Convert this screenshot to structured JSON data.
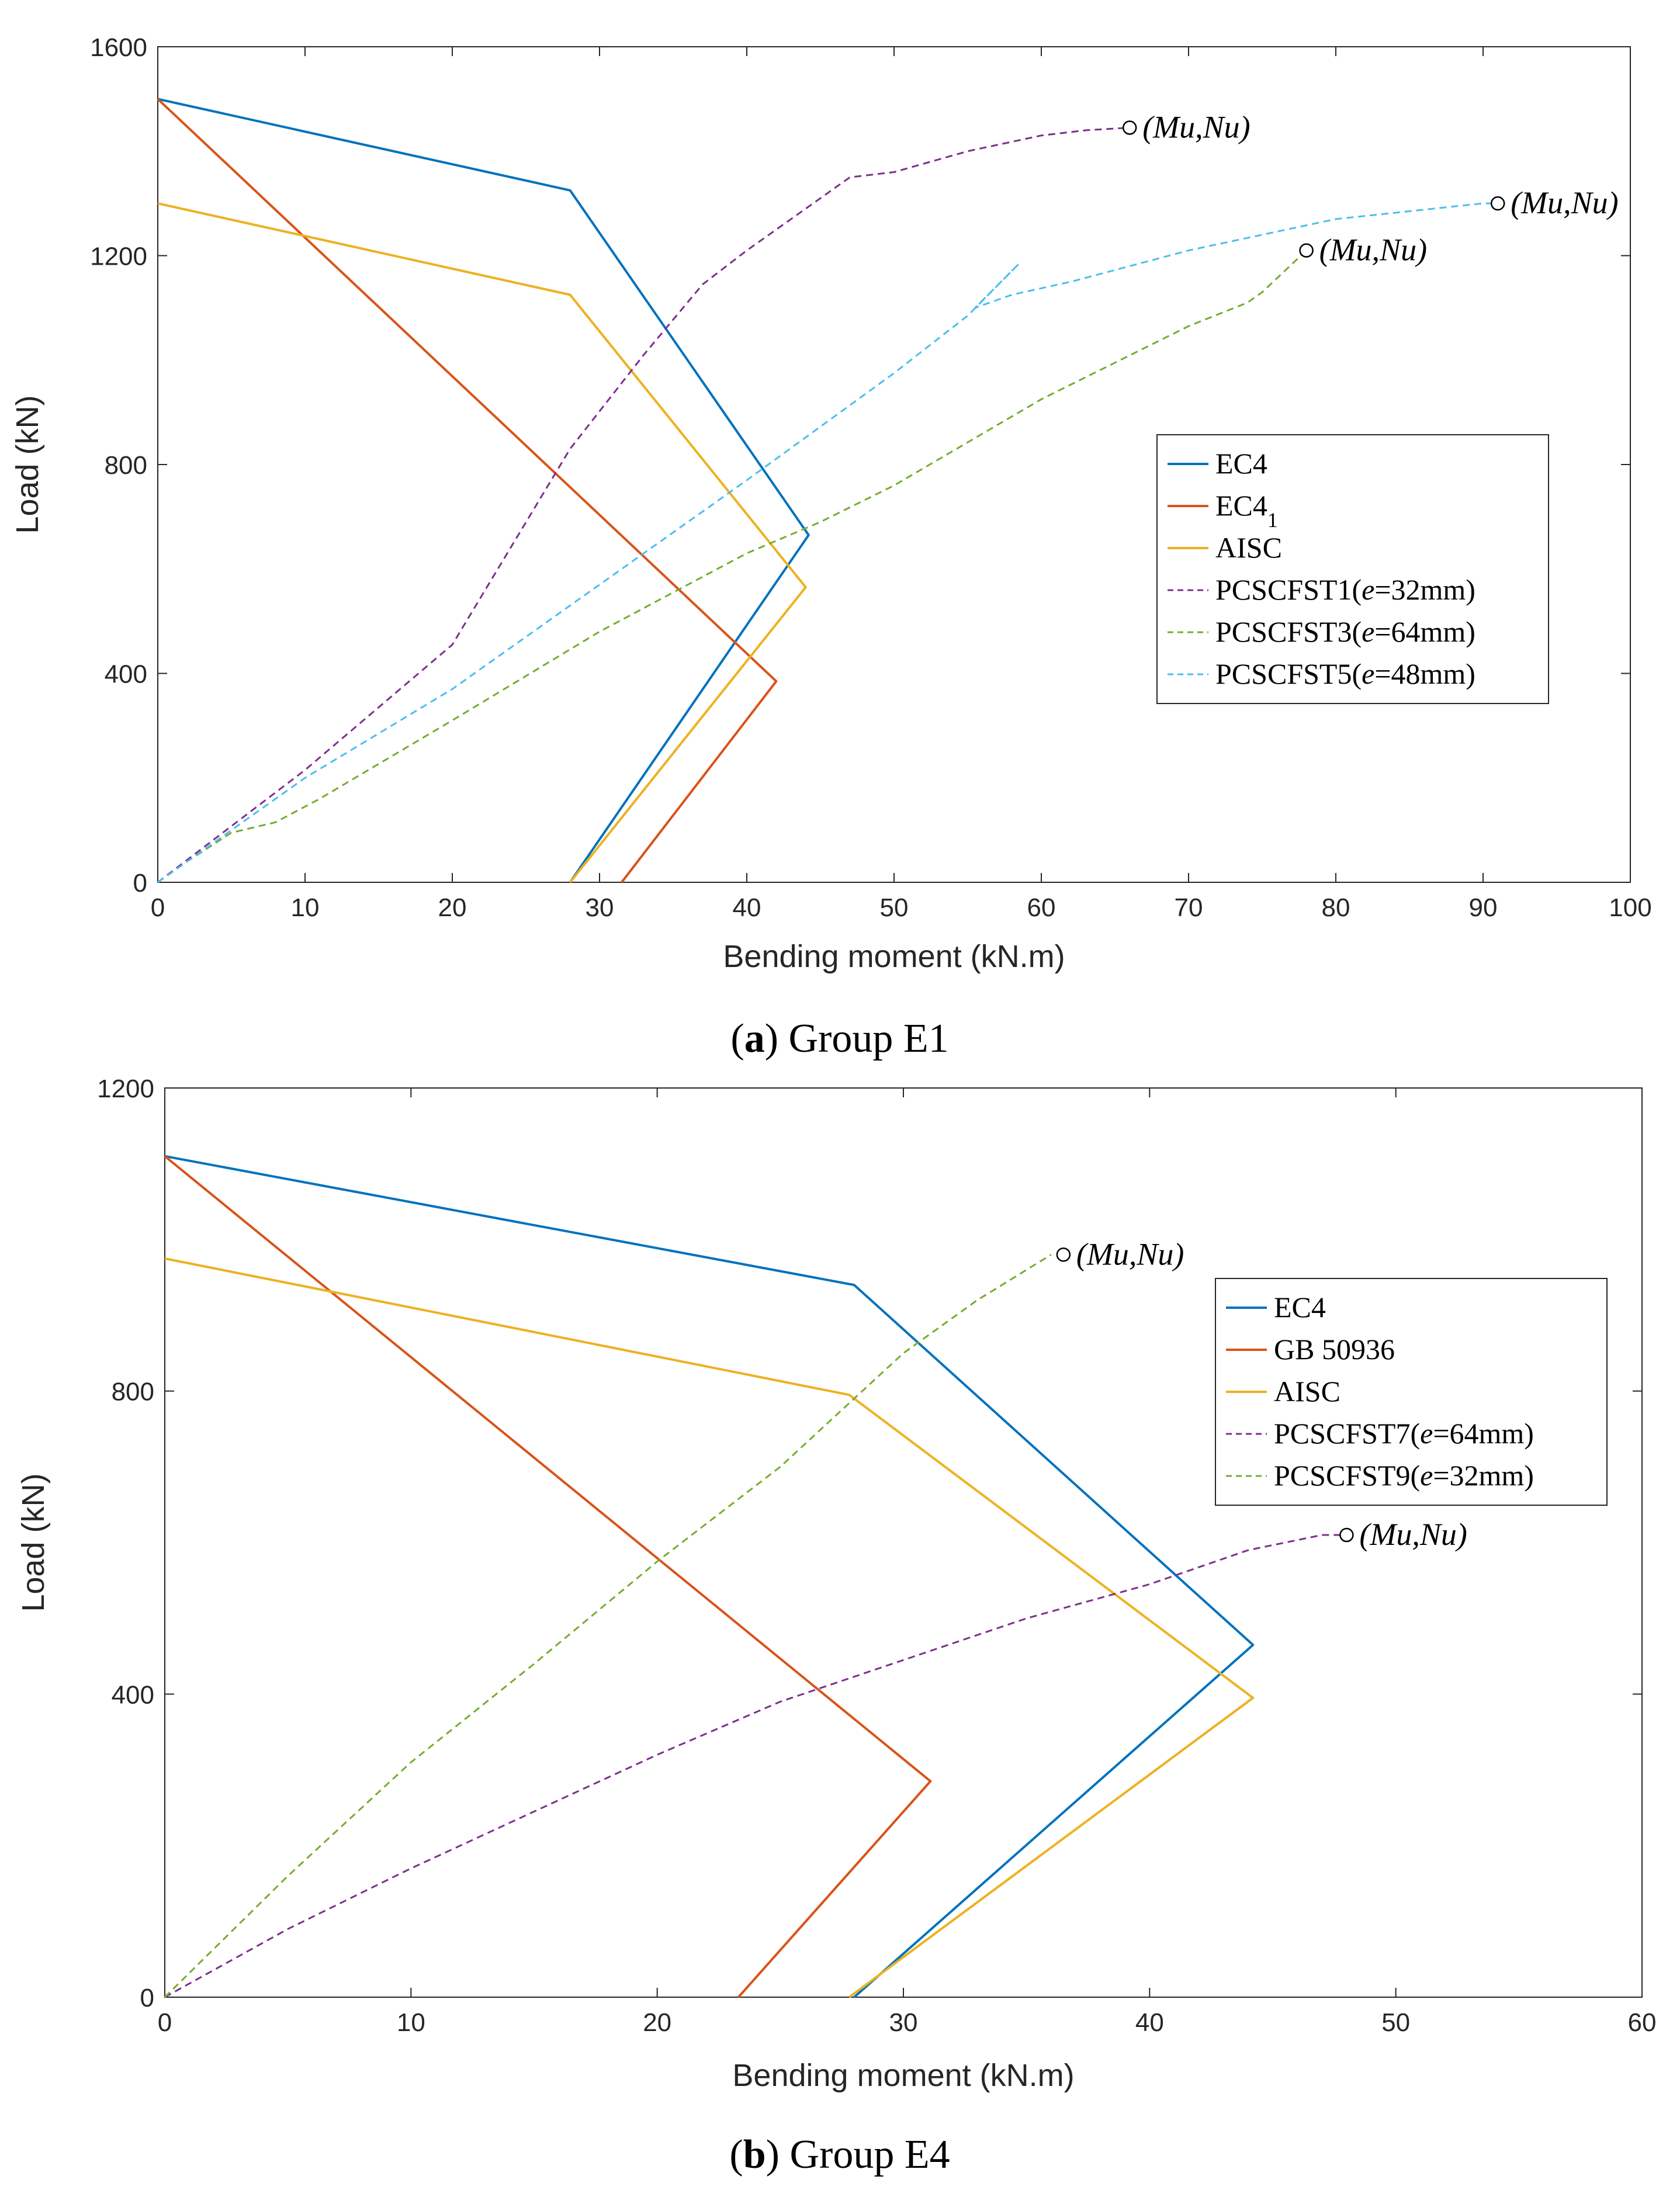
{
  "colors": {
    "EC4": "#0072BD",
    "EC4_1": "#D95319",
    "GB 50936": "#D95319",
    "AISC": "#EDB120",
    "purple": "#7E2F8E",
    "green": "#77AC30",
    "cyan": "#4DBEEE"
  },
  "chart_data": [
    {
      "type": "line",
      "caption": {
        "prefix": "(",
        "letter": "a",
        "suffix": ") Group E1"
      },
      "xlabel": "Bending moment (kN.m)",
      "ylabel": "Load (kN)",
      "xlim": [
        0,
        100
      ],
      "ylim": [
        0,
        1600
      ],
      "xticks": [
        0,
        10,
        20,
        30,
        40,
        50,
        60,
        70,
        80,
        90,
        100
      ],
      "yticks": [
        0,
        400,
        800,
        1200,
        1600
      ],
      "legend": {
        "position": "middle-right",
        "entries": [
          {
            "label": "EC4",
            "color": "#0072BD",
            "dash": false
          },
          {
            "label": "EC4",
            "sub": "1",
            "color": "#D95319",
            "dash": false
          },
          {
            "label": "AISC",
            "color": "#EDB120",
            "dash": false
          },
          {
            "label": "PCSCFST1(",
            "ital": "e",
            "rest": "=32mm)",
            "color": "#7E2F8E",
            "dash": true
          },
          {
            "label": "PCSCFST3(",
            "ital": "e",
            "rest": "=64mm)",
            "color": "#77AC30",
            "dash": true
          },
          {
            "label": "PCSCFST5(",
            "ital": "e",
            "rest": "=48mm)",
            "color": "#4DBEEE",
            "dash": true
          }
        ]
      },
      "series": [
        {
          "name": "EC4",
          "color": "#0072BD",
          "dash": false,
          "x": [
            0,
            28,
            44.2,
            28
          ],
          "y": [
            1500,
            1325,
            665,
            0
          ]
        },
        {
          "name": "EC4_1",
          "color": "#D95319",
          "dash": false,
          "x": [
            0,
            42,
            31.5
          ],
          "y": [
            1500,
            385,
            0
          ]
        },
        {
          "name": "AISC",
          "color": "#EDB120",
          "dash": false,
          "x": [
            0,
            28,
            44,
            28
          ],
          "y": [
            1300,
            1125,
            565,
            0
          ]
        },
        {
          "name": "PCSCFST1",
          "color": "#7E2F8E",
          "dash": true,
          "x": [
            0,
            10,
            20,
            28,
            33,
            37,
            40,
            44,
            47,
            50,
            55,
            60,
            63,
            66
          ],
          "y": [
            0,
            215,
            455,
            830,
            1010,
            1145,
            1210,
            1290,
            1350,
            1360,
            1400,
            1430,
            1440,
            1445
          ]
        },
        {
          "name": "PCSCFST3",
          "color": "#77AC30",
          "dash": true,
          "x": [
            0,
            2,
            5,
            8,
            11,
            20,
            30,
            40,
            45,
            50,
            60,
            70,
            74,
            75,
            78
          ],
          "y": [
            0,
            40,
            95,
            115,
            160,
            310,
            480,
            630,
            690,
            760,
            925,
            1065,
            1110,
            1130,
            1210
          ]
        },
        {
          "name": "PCSCFST5",
          "color": "#4DBEEE",
          "dash": true,
          "x": [
            0,
            10,
            20,
            30,
            40,
            50,
            55,
            58.5,
            55.5,
            58,
            62,
            70,
            80,
            90,
            91
          ],
          "y": [
            0,
            200,
            370,
            570,
            770,
            975,
            1085,
            1185,
            1100,
            1125,
            1150,
            1210,
            1270,
            1300,
            1300
          ]
        }
      ],
      "annotations": [
        {
          "x": 66,
          "y": 1445,
          "text": "(Mu,Nu)"
        },
        {
          "x": 91,
          "y": 1300,
          "text": "(Mu,Nu)"
        },
        {
          "x": 78,
          "y": 1210,
          "text": "(Mu,Nu)"
        }
      ]
    },
    {
      "type": "line",
      "caption": {
        "prefix": "(",
        "letter": "b",
        "suffix": ") Group E4"
      },
      "xlabel": "Bending moment (kN.m)",
      "ylabel": "Load (kN)",
      "xlim": [
        0,
        60
      ],
      "ylim": [
        0,
        1200
      ],
      "xticks": [
        0,
        10,
        20,
        30,
        40,
        50,
        60
      ],
      "yticks": [
        0,
        400,
        800,
        1200
      ],
      "legend": {
        "position": "top-right",
        "entries": [
          {
            "label": "EC4",
            "color": "#0072BD",
            "dash": false
          },
          {
            "label": "GB 50936",
            "color": "#D95319",
            "dash": false
          },
          {
            "label": "AISC",
            "color": "#EDB120",
            "dash": false
          },
          {
            "label": "PCSCFST7(",
            "ital": "e",
            "rest": "=64mm)",
            "color": "#7E2F8E",
            "dash": true
          },
          {
            "label": "PCSCFST9(",
            "ital": "e",
            "rest": "=32mm)",
            "color": "#77AC30",
            "dash": true
          }
        ]
      },
      "series": [
        {
          "name": "EC4",
          "color": "#0072BD",
          "dash": false,
          "x": [
            0,
            28,
            44.2,
            28
          ],
          "y": [
            1110,
            940,
            465,
            0
          ]
        },
        {
          "name": "GB 50936",
          "color": "#D95319",
          "dash": false,
          "x": [
            0,
            31.1,
            23.3
          ],
          "y": [
            1110,
            285,
            0
          ]
        },
        {
          "name": "AISC",
          "color": "#EDB120",
          "dash": false,
          "x": [
            0,
            27.8,
            44.2,
            27.8
          ],
          "y": [
            975,
            795,
            395,
            0
          ]
        },
        {
          "name": "PCSCFST7",
          "color": "#7E2F8E",
          "dash": true,
          "x": [
            0,
            5,
            10,
            15,
            20,
            25,
            30,
            35,
            40,
            44,
            47,
            48
          ],
          "y": [
            0,
            90,
            170,
            245,
            320,
            390,
            445,
            500,
            545,
            590,
            610,
            610
          ]
        },
        {
          "name": "PCSCFST9",
          "color": "#77AC30",
          "dash": true,
          "x": [
            0,
            5,
            10,
            15,
            20,
            25,
            28,
            30,
            33,
            36
          ],
          "y": [
            0,
            160,
            310,
            440,
            575,
            700,
            790,
            850,
            920,
            980
          ]
        }
      ],
      "annotations": [
        {
          "x": 48,
          "y": 610,
          "text": "(Mu,Nu)"
        },
        {
          "x": 36.5,
          "y": 980,
          "text": "(Mu,Nu)"
        }
      ]
    }
  ]
}
